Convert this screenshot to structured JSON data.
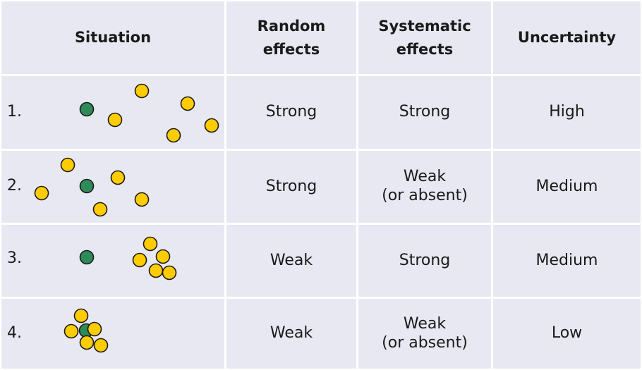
{
  "headers": {
    "situation": "Situation",
    "random_line1": "Random",
    "random_line2": "effects",
    "systematic_line1": "Systematic",
    "systematic_line2": "effects",
    "uncertainty": "Uncertainty"
  },
  "rows": [
    {
      "number": "1.",
      "random": "Strong",
      "systematic_line1": "Strong",
      "systematic_line2": "",
      "uncertainty": "High"
    },
    {
      "number": "2.",
      "random": "Strong",
      "systematic_line1": "Weak",
      "systematic_line2": "(or absent)",
      "uncertainty": "Medium"
    },
    {
      "number": "3.",
      "random": "Weak",
      "systematic_line1": "Strong",
      "systematic_line2": "",
      "uncertainty": "Medium"
    },
    {
      "number": "4.",
      "random": "Weak",
      "systematic_line1": "Weak",
      "systematic_line2": "(or absent)",
      "uncertainty": "Low"
    }
  ],
  "colors": {
    "true_value_dot": "#2e8b57",
    "measurement_dot": "#ffcc00",
    "cell_background": "#e8e8f3",
    "grid_line": "#ffffff"
  },
  "icons": {
    "true_value": "green-circle",
    "measurement": "yellow-circle"
  }
}
